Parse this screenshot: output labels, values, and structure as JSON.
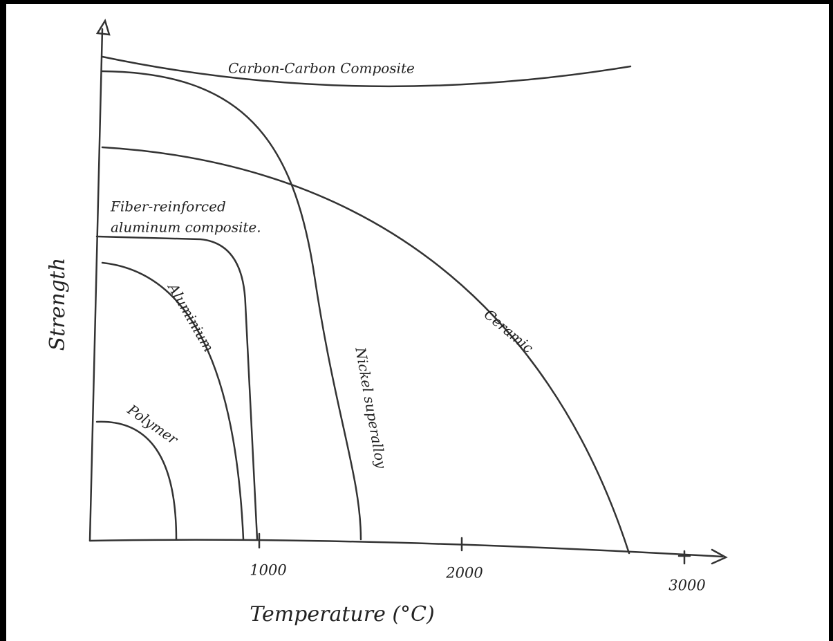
{
  "axes": {
    "x_label": "Temperature (°C)",
    "y_label": "Strength",
    "x_ticks": [
      "1000",
      "2000",
      "3000"
    ]
  },
  "curves": [
    {
      "label": "Carbon-Carbon Composite"
    },
    {
      "label": "Ceramic"
    },
    {
      "label": "Nickel superalloy"
    },
    {
      "label": "Fiber-reinforced"
    },
    {
      "label": "aluminum composite."
    },
    {
      "label": "Aluminium"
    },
    {
      "label": "Polymer"
    }
  ]
}
